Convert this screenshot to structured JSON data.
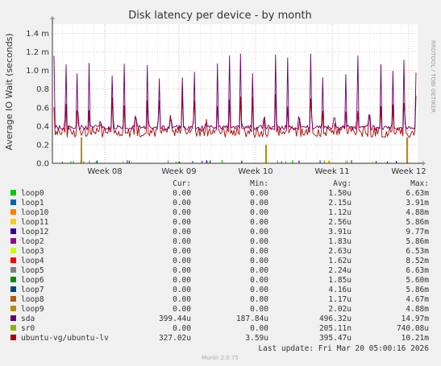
{
  "chart_data": {
    "type": "line",
    "title": "Disk latency per device - by month",
    "ylabel": "Average IO Wait (seconds)",
    "side_text": "RRDTOOL / TOBI OETIKER",
    "ylim": [
      0,
      1.5
    ],
    "yticks": [
      {
        "value": 0.0,
        "label": "0.0"
      },
      {
        "value": 0.2,
        "label": "0.2"
      },
      {
        "value": 0.4,
        "label": "0.4"
      },
      {
        "value": 0.6,
        "label": "0.6"
      },
      {
        "value": 0.8,
        "label": "0.8"
      },
      {
        "value": 1.0,
        "label": "1.0 m"
      },
      {
        "value": 1.2,
        "label": "1.2 m"
      },
      {
        "value": 1.4,
        "label": "1.4 m"
      }
    ],
    "xticks": [
      "Week 08",
      "Week 09",
      "Week 10",
      "Week 11",
      "Week 12"
    ],
    "table_headers": [
      "Cur:",
      "Min:",
      "Avg:",
      "Max:"
    ],
    "legend": [
      {
        "name": "loop0",
        "color": "#00cc00",
        "cur": "0.00",
        "min": "0.00",
        "avg": "1.50u",
        "max": "6.63m"
      },
      {
        "name": "loop1",
        "color": "#0066b3",
        "cur": "0.00",
        "min": "0.00",
        "avg": "2.15u",
        "max": "3.91m"
      },
      {
        "name": "loop10",
        "color": "#ff8000",
        "cur": "0.00",
        "min": "0.00",
        "avg": "1.12u",
        "max": "4.88m"
      },
      {
        "name": "loop11",
        "color": "#ffcc00",
        "cur": "0.00",
        "min": "0.00",
        "avg": "2.56u",
        "max": "5.86m"
      },
      {
        "name": "loop12",
        "color": "#330099",
        "cur": "0.00",
        "min": "0.00",
        "avg": "3.91u",
        "max": "9.77m"
      },
      {
        "name": "loop2",
        "color": "#990099",
        "cur": "0.00",
        "min": "0.00",
        "avg": "1.83u",
        "max": "5.86m"
      },
      {
        "name": "loop3",
        "color": "#ccff00",
        "cur": "0.00",
        "min": "0.00",
        "avg": "2.63u",
        "max": "6.53m"
      },
      {
        "name": "loop4",
        "color": "#ff0000",
        "cur": "0.00",
        "min": "0.00",
        "avg": "1.62u",
        "max": "8.52m"
      },
      {
        "name": "loop5",
        "color": "#808080",
        "cur": "0.00",
        "min": "0.00",
        "avg": "2.24u",
        "max": "6.63m"
      },
      {
        "name": "loop6",
        "color": "#008f00",
        "cur": "0.00",
        "min": "0.00",
        "avg": "1.85u",
        "max": "5.60m"
      },
      {
        "name": "loop7",
        "color": "#00487d",
        "cur": "0.00",
        "min": "0.00",
        "avg": "4.16u",
        "max": "5.86m"
      },
      {
        "name": "loop8",
        "color": "#b35a00",
        "cur": "0.00",
        "min": "0.00",
        "avg": "1.17u",
        "max": "4.67m"
      },
      {
        "name": "loop9",
        "color": "#b38f00",
        "cur": "0.00",
        "min": "0.00",
        "avg": "2.02u",
        "max": "4.88m"
      },
      {
        "name": "sda",
        "color": "#6b006b",
        "cur": "399.44u",
        "min": "187.84u",
        "avg": "496.32u",
        "max": "14.97m"
      },
      {
        "name": "sr0",
        "color": "#8fb300",
        "cur": "0.00",
        "min": "0.00",
        "avg": "205.11n",
        "max": "740.08u"
      },
      {
        "name": "ubuntu-vg/ubuntu-lv",
        "color": "#b30000",
        "cur": "327.02u",
        "min": "3.59u",
        "avg": "395.47u",
        "max": "10.21m"
      }
    ],
    "last_update": "Last update: Fri Mar 20 05:00:16 2026",
    "footer": "Munin 2.0.75"
  }
}
